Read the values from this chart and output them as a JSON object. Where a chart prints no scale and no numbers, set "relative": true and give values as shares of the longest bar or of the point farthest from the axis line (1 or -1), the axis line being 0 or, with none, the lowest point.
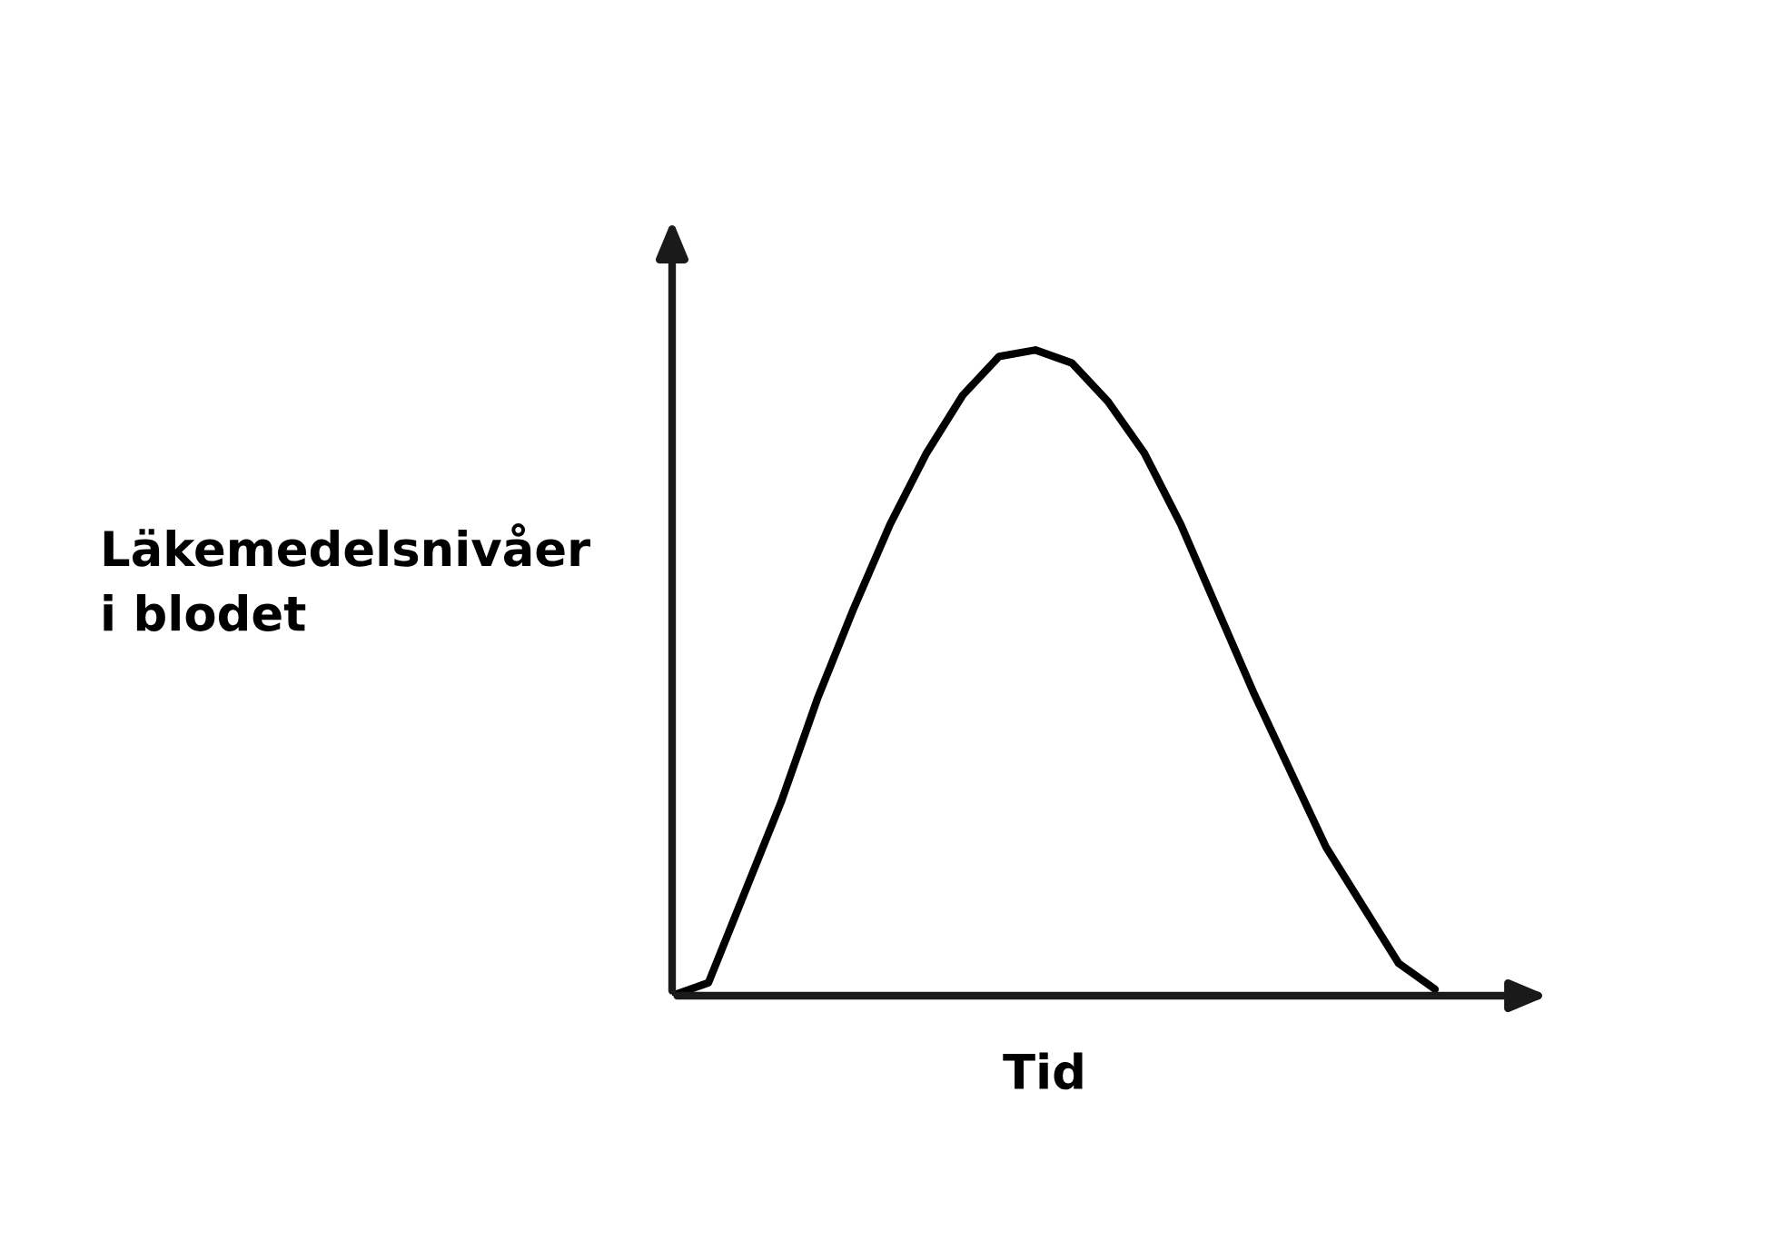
{
  "chart_data": {
    "type": "line",
    "relative": true,
    "xlabel": "Tid",
    "ylabel": "Läkemedelsnivåer\ni blodet",
    "categories": [
      null,
      null,
      null,
      null,
      null,
      null,
      null,
      null,
      null,
      null,
      null,
      null,
      null,
      null,
      null,
      null,
      null,
      null,
      null,
      null,
      null,
      null,
      null,
      null,
      null
    ],
    "series": [
      {
        "color": "#000000",
        "values": [
          0,
          0.02,
          0.16,
          0.3,
          0.46,
          0.6,
          0.73,
          0.84,
          0.93,
          0.99,
          1,
          0.98,
          0.92,
          0.84,
          0.73,
          0.6,
          0.47,
          0.35,
          0.23,
          0.14,
          0.05,
          0.01,
          null,
          null,
          null
        ]
      }
    ],
    "marker": "none",
    "line_style": "solid"
  }
}
